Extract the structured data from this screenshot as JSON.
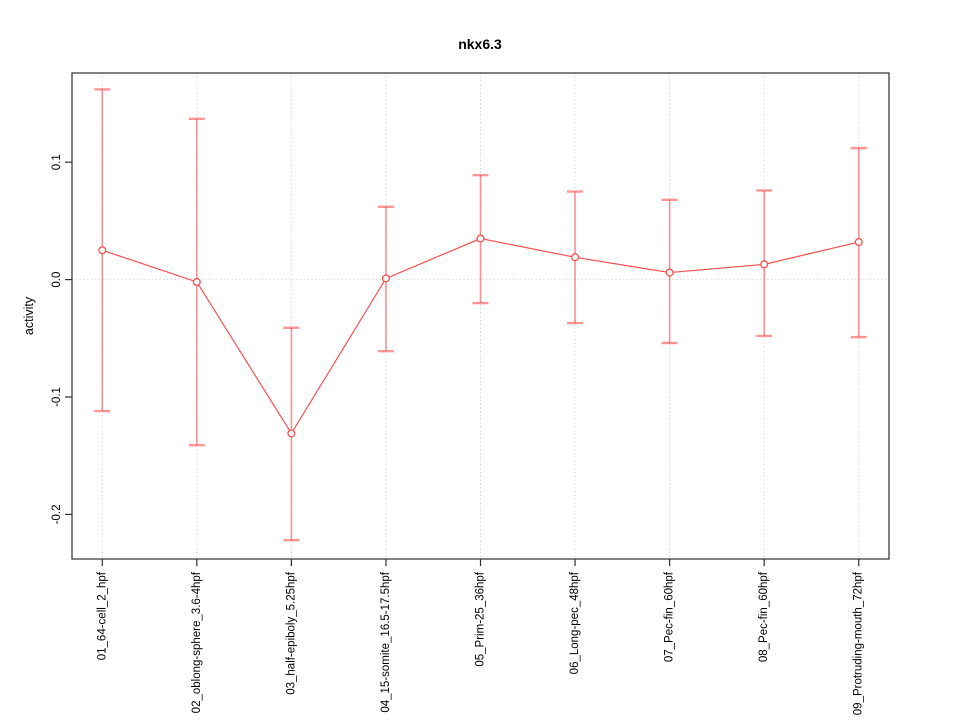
{
  "chart_data": {
    "type": "line",
    "title": "nkx6.3",
    "xlabel": "",
    "ylabel": "activity",
    "categories": [
      "01_64-cell_2_hpf",
      "02_oblong-sphere_3.6-4hpf",
      "03_half-epiboly_5.25hpf",
      "04_15-somite_16.5-17.5hpf",
      "05_Prim-25_36hpf",
      "06_Long-pec_48hpf",
      "07_Pec-fin_60hpf",
      "08_Pec-fin_60hpf",
      "09_Protruding-mouth_72hpf"
    ],
    "values": [
      0.025,
      -0.002,
      -0.131,
      0.001,
      0.035,
      0.019,
      0.006,
      0.013,
      0.032
    ],
    "error_high": [
      0.162,
      0.137,
      -0.041,
      0.062,
      0.089,
      0.075,
      0.068,
      0.076,
      0.112
    ],
    "error_low": [
      -0.112,
      -0.141,
      -0.222,
      -0.061,
      -0.02,
      -0.037,
      -0.054,
      -0.048,
      -0.049
    ],
    "yticks": [
      -0.2,
      -0.1,
      0.0,
      0.1
    ],
    "ytick_labels": [
      "-0.2",
      "-0.1",
      "0.0",
      "0.1"
    ],
    "ylim": [
      -0.238,
      0.176
    ],
    "xlim": [
      0.68,
      9.32
    ],
    "grid": {
      "style": "dotted",
      "vertical_at_categories": true,
      "horizontal_at_zero": true
    },
    "legend": "none",
    "marker": "open-circle",
    "colors": {
      "line": "#f94f4f",
      "point_stroke": "#f94f4f",
      "point_fill": "#ffffff",
      "error_bar": "rgba(252,66,66,0.55)",
      "grid": "#cfcfcf",
      "axis": "#2f2f2f",
      "background": "#ffffff",
      "text": "#000000"
    }
  }
}
